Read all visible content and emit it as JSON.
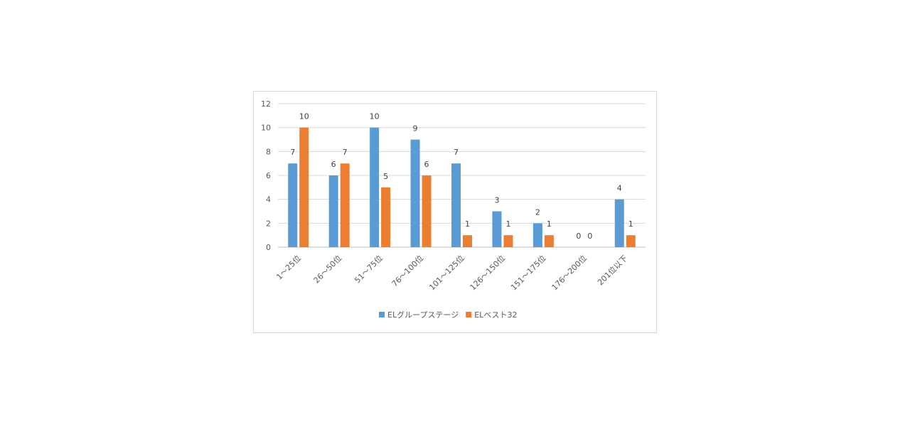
{
  "chart_data": {
    "type": "bar",
    "categories": [
      "1〜25位",
      "26〜50位",
      "51〜75位",
      "76〜100位",
      "101〜125位",
      "126〜150位",
      "151〜175位",
      "176〜200位",
      "201位以下"
    ],
    "series": [
      {
        "name": "ELグループステージ",
        "color": "#5b9bd5",
        "values": [
          7,
          6,
          10,
          9,
          7,
          3,
          2,
          0,
          4
        ]
      },
      {
        "name": "ELベスト32",
        "color": "#ed7d31",
        "values": [
          10,
          7,
          5,
          6,
          1,
          1,
          1,
          0,
          1
        ]
      }
    ],
    "y_ticks": [
      "0",
      "2",
      "4",
      "6",
      "8",
      "10",
      "12"
    ],
    "ylim": [
      0,
      12
    ],
    "grid": true,
    "legend_position": "bottom",
    "data_labels": true
  }
}
